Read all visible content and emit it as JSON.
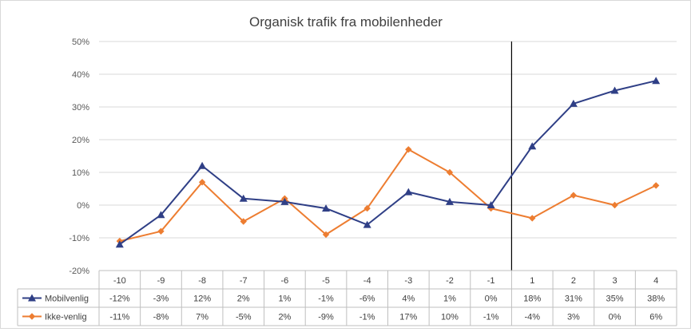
{
  "chart_data": {
    "type": "line",
    "title": "Organisk trafik fra mobilenheder",
    "xlabel": "",
    "ylabel": "",
    "categories": [
      "-10",
      "-9",
      "-8",
      "-7",
      "-6",
      "-5",
      "-4",
      "-3",
      "-2",
      "-1",
      "1",
      "2",
      "3",
      "4"
    ],
    "ylim": [
      -20,
      50
    ],
    "yticks": [
      "-20%",
      "-10%",
      "0%",
      "10%",
      "20%",
      "30%",
      "40%",
      "50%"
    ],
    "y_unit": "%",
    "grid": true,
    "vertical_marker_after_category": "-1",
    "legend": "data-table",
    "series": [
      {
        "name": "Mobilvenlig",
        "color": "#2f3f86",
        "marker": "triangle",
        "values": [
          -12,
          -3,
          12,
          2,
          1,
          -1,
          -6,
          4,
          1,
          0,
          18,
          31,
          35,
          38
        ],
        "labels": [
          "-12%",
          "-3%",
          "12%",
          "2%",
          "1%",
          "-1%",
          "-6%",
          "4%",
          "1%",
          "0%",
          "18%",
          "31%",
          "35%",
          "38%"
        ]
      },
      {
        "name": "Ikke-venlig",
        "color": "#ed7d31",
        "marker": "diamond",
        "values": [
          -11,
          -8,
          7,
          -5,
          2,
          -9,
          -1,
          17,
          10,
          -1,
          -4,
          3,
          0,
          6
        ],
        "labels": [
          "-11%",
          "-8%",
          "7%",
          "-5%",
          "2%",
          "-9%",
          "-1%",
          "17%",
          "10%",
          "-1%",
          "-4%",
          "3%",
          "0%",
          "6%"
        ]
      }
    ]
  }
}
